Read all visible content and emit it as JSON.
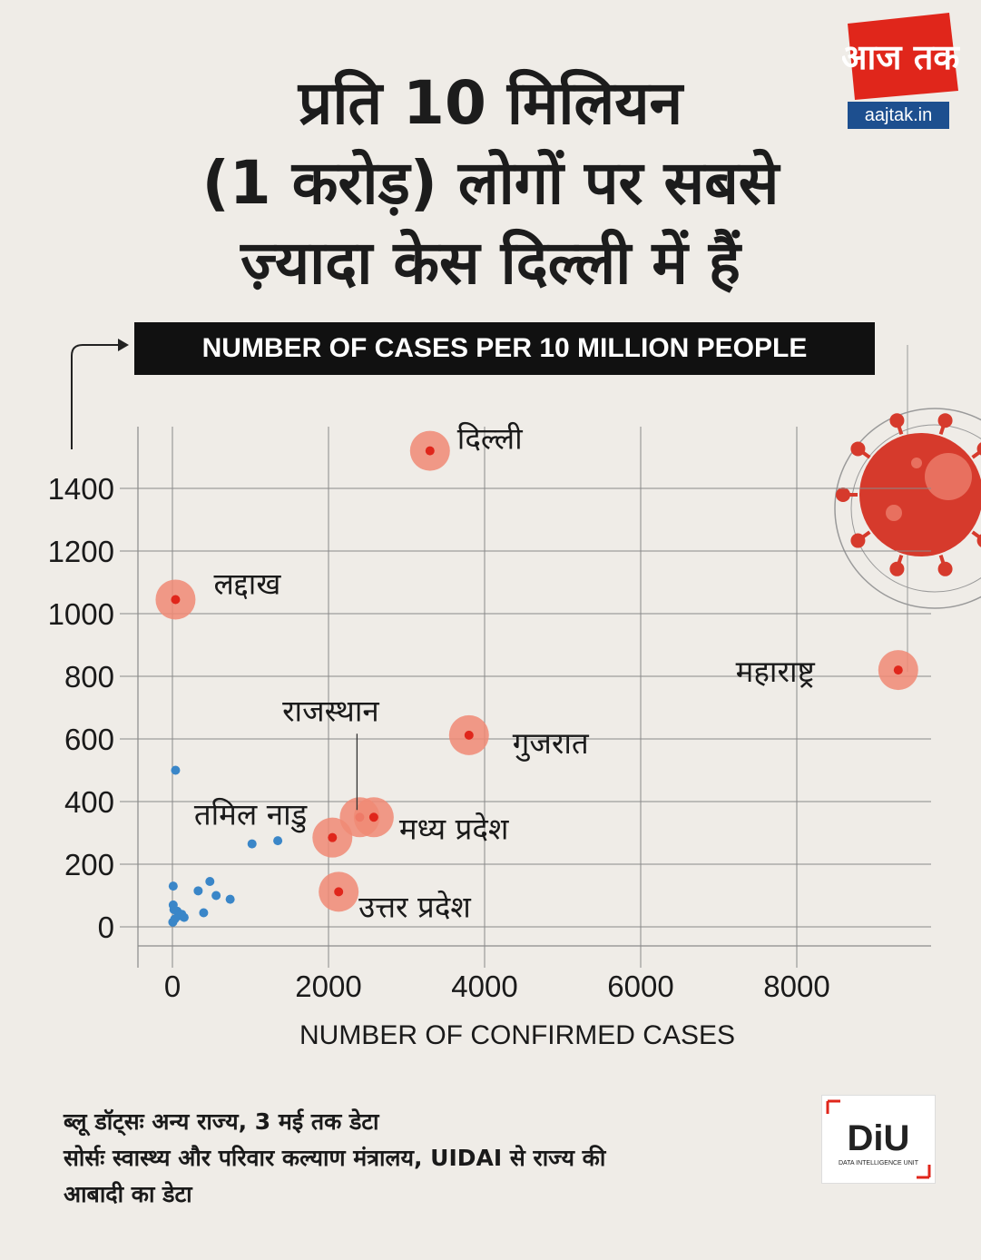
{
  "headline": {
    "line1": "प्रति 10 मिलियन",
    "line2": "(1 करोड़) लोगों पर सबसे",
    "line3": "ज़्यादा केस दिल्ली में हैं"
  },
  "brand": {
    "logo_text": "आज तक",
    "site": "aajtak.in",
    "unit_logo": "DiU",
    "unit_name": "DATA INTELLIGENCE UNIT",
    "accent_color": "#e0261b"
  },
  "footnote": {
    "line1": "ब्लू डॉट्सः  अन्य राज्य, 3 मई तक डेटा",
    "line2": "सोर्सः स्वास्थ्य और परिवार कल्याण मंत्रालय, UIDAI से राज्य की",
    "line3": "आबादी का डेटा"
  },
  "chart_data": {
    "type": "scatter",
    "xlabel": "NUMBER OF CONFIRMED CASES",
    "ylabel": "NUMBER OF CASES PER 10 MILLION PEOPLE",
    "xlim": [
      -400,
      9800
    ],
    "ylim": [
      -60,
      1550
    ],
    "xticks": [
      0,
      2000,
      4000,
      6000,
      8000
    ],
    "yticks": [
      0,
      200,
      400,
      600,
      800,
      1000,
      1200,
      1400
    ],
    "grid": true,
    "highlight_color": "#e0261b",
    "other_color": "#3a86c8",
    "highlighted": [
      {
        "label": "दिल्ली",
        "x": 3300,
        "y": 1520
      },
      {
        "label": "लद्दाख",
        "x": 40,
        "y": 1045
      },
      {
        "label": "महाराष्ट्र",
        "x": 9300,
        "y": 820
      },
      {
        "label": "गुजरात",
        "x": 3800,
        "y": 612
      },
      {
        "label": "राजस्थान",
        "x": 2400,
        "y": 350
      },
      {
        "label": "मध्य प्रदेश",
        "x": 2580,
        "y": 350
      },
      {
        "label": "तमिल नाडु",
        "x": 2050,
        "y": 285
      },
      {
        "label": "उत्तर प्रदेश",
        "x": 2130,
        "y": 112
      }
    ],
    "others": [
      {
        "x": 40,
        "y": 500
      },
      {
        "x": 1020,
        "y": 265
      },
      {
        "x": 1350,
        "y": 275
      },
      {
        "x": 480,
        "y": 145
      },
      {
        "x": 330,
        "y": 115
      },
      {
        "x": 560,
        "y": 100
      },
      {
        "x": 740,
        "y": 88
      },
      {
        "x": 10,
        "y": 130
      },
      {
        "x": 10,
        "y": 70
      },
      {
        "x": 20,
        "y": 55
      },
      {
        "x": 60,
        "y": 50
      },
      {
        "x": 120,
        "y": 40
      },
      {
        "x": 80,
        "y": 35
      },
      {
        "x": 400,
        "y": 45
      },
      {
        "x": 30,
        "y": 25
      },
      {
        "x": 150,
        "y": 30
      },
      {
        "x": 5,
        "y": 15
      }
    ]
  }
}
